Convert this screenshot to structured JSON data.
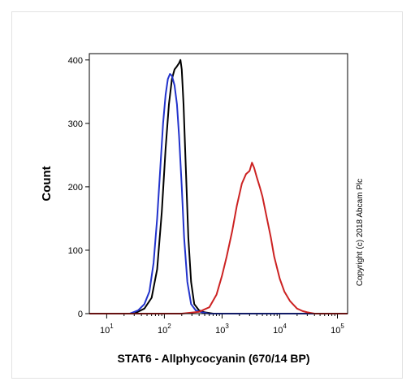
{
  "chart_data": {
    "type": "line",
    "xscale": "log",
    "xlim": [
      5,
      150000
    ],
    "ylim": [
      0,
      410
    ],
    "xlabel": "STAT6 - Allphycocyanin (670/14 BP)",
    "ylabel": "Count",
    "y_ticks": [
      0,
      100,
      200,
      300,
      400
    ],
    "x_ticks": [
      {
        "value": 10,
        "base": "10",
        "exp": "1"
      },
      {
        "value": 100,
        "base": "10",
        "exp": "2"
      },
      {
        "value": 1000,
        "base": "10",
        "exp": "3"
      },
      {
        "value": 10000,
        "base": "10",
        "exp": "4"
      },
      {
        "value": 100000,
        "base": "10",
        "exp": "5"
      }
    ],
    "annotation": "Copyright (c) 2018 Abcam Plc",
    "series": [
      {
        "color": "#000000",
        "x": [
          5,
          30,
          45,
          60,
          75,
          90,
          105,
          120,
          135,
          150,
          165,
          180,
          190,
          200,
          215,
          235,
          260,
          290,
          330,
          400,
          500,
          700,
          1000,
          150000
        ],
        "y": [
          0,
          0,
          8,
          25,
          70,
          160,
          260,
          330,
          370,
          385,
          390,
          395,
          400,
          385,
          330,
          230,
          120,
          50,
          15,
          5,
          2,
          0,
          0,
          0
        ]
      },
      {
        "color": "#2233cc",
        "x": [
          5,
          25,
          35,
          45,
          55,
          65,
          75,
          85,
          95,
          105,
          115,
          125,
          135,
          150,
          165,
          180,
          200,
          220,
          250,
          290,
          350,
          450,
          600,
          1000,
          150000
        ],
        "y": [
          0,
          0,
          5,
          15,
          35,
          80,
          150,
          230,
          300,
          345,
          370,
          378,
          375,
          360,
          330,
          280,
          200,
          120,
          50,
          15,
          5,
          2,
          0,
          0,
          0
        ]
      },
      {
        "color": "#cc2222",
        "x": [
          5,
          200,
          400,
          600,
          800,
          1000,
          1200,
          1500,
          1800,
          2200,
          2600,
          3000,
          3300,
          3600,
          4000,
          4500,
          5000,
          6000,
          7000,
          8000,
          10000,
          12000,
          15000,
          20000,
          25000,
          30000,
          40000,
          150000
        ],
        "y": [
          0,
          0,
          3,
          10,
          30,
          60,
          90,
          130,
          170,
          205,
          220,
          225,
          238,
          230,
          215,
          200,
          185,
          150,
          120,
          90,
          55,
          35,
          20,
          8,
          4,
          2,
          0,
          0
        ]
      }
    ]
  }
}
